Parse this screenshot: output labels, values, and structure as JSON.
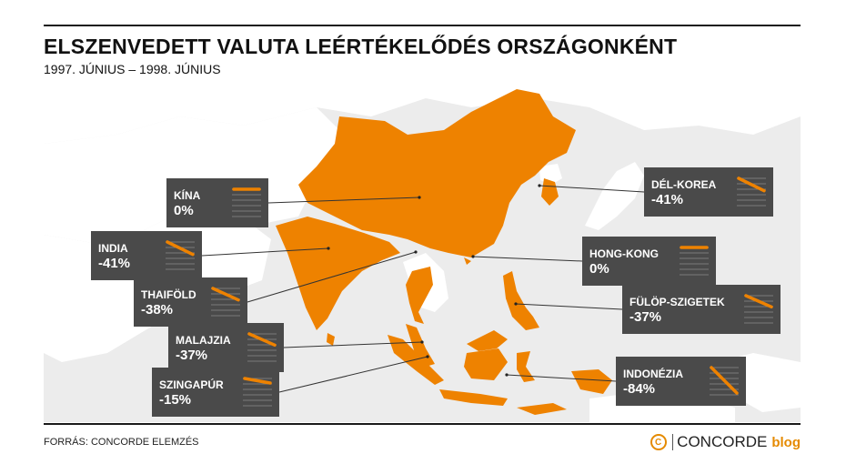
{
  "header": {
    "title": "ELSZENVEDETT VALUTA LEÉRTÉKELŐDÉS ORSZÁGONKÉNT",
    "subtitle": "1997. JÚNIUS – 1998. JÚNIUS"
  },
  "footer": {
    "source": "FORRÁS: CONCORDE ELEMZÉS",
    "brand_name": "CONCORDE",
    "brand_suffix": "blog",
    "logo_glyph": "C"
  },
  "colors": {
    "highlight": "#ee8200",
    "background_land": "#ffffff",
    "sea": "#ececec",
    "callout_bg": "#4a4a4a",
    "text_on_callout": "#ffffff"
  },
  "chart_data": {
    "type": "table",
    "title": "ELSZENVEDETT VALUTA LEÉRTÉKELŐDÉS ORSZÁGONKÉNT",
    "subtitle": "1997. JÚNIUS – 1998. JÚNIUS",
    "unit": "%",
    "rows": [
      {
        "country": "KÍNA",
        "label": "0%",
        "value": 0
      },
      {
        "country": "INDIA",
        "label": "-41%",
        "value": -41
      },
      {
        "country": "THAIFÖLD",
        "label": "-38%",
        "value": -38
      },
      {
        "country": "MALAJZIA",
        "label": "-37%",
        "value": -37
      },
      {
        "country": "SZINGAPÚR",
        "label": "-15%",
        "value": -15
      },
      {
        "country": "DÉL-KOREA",
        "label": "-41%",
        "value": -41
      },
      {
        "country": "HONG-KONG",
        "label": "0%",
        "value": 0
      },
      {
        "country": "FÜLÖP-SZIGETEK",
        "label": "-37%",
        "value": -37
      },
      {
        "country": "INDONÉZIA",
        "label": "-84%",
        "value": -84
      }
    ]
  }
}
